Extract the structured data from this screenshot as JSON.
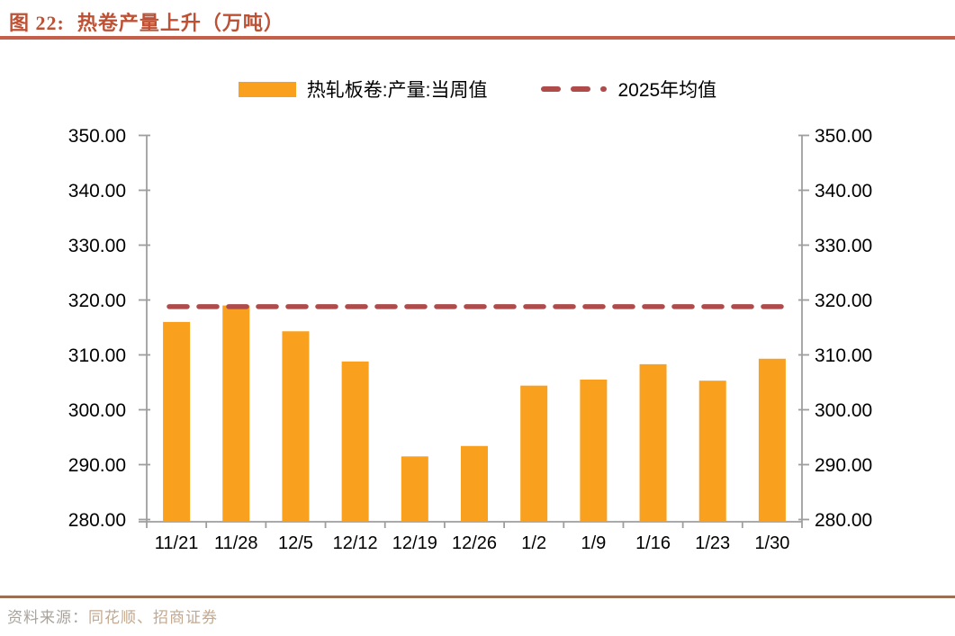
{
  "header": {
    "figure_label": "图 22:",
    "title": "热卷产量上升（万吨）"
  },
  "legend": {
    "bar_label": "热轧板卷:产量:当周值",
    "mean_label": "2025年均值"
  },
  "chart_data": {
    "type": "bar",
    "title": "热卷产量上升（万吨）",
    "categories": [
      "11/21",
      "11/28",
      "12/5",
      "12/12",
      "12/19",
      "12/26",
      "1/2",
      "1/9",
      "1/16",
      "1/23",
      "1/30"
    ],
    "series": [
      {
        "name": "热轧板卷:产量:当周值",
        "type": "bar",
        "values": [
          316.0,
          319.0,
          314.3,
          308.8,
          291.5,
          293.4,
          304.4,
          305.5,
          308.3,
          305.3,
          309.3
        ]
      },
      {
        "name": "2025年均值",
        "type": "dashed-horizontal-line",
        "value": 318.8
      }
    ],
    "ylim": [
      280,
      350
    ],
    "ytick_step": 10,
    "yticks": [
      "280.00",
      "290.00",
      "300.00",
      "310.00",
      "320.00",
      "330.00",
      "340.00",
      "350.00"
    ],
    "y_axis_sides": [
      "left",
      "right"
    ],
    "grid": false,
    "legend_position": "top-center",
    "xlabel": "",
    "ylabel": ""
  },
  "colors": {
    "bar": "#F9A11E",
    "mean_line": "#AF4B4B",
    "title": "#BE5134",
    "title_rule": "#C4604A",
    "axis": "#9E9E9E",
    "tick_label": "#000000",
    "footer_rule": "#9C6F52",
    "source_prefix_color": "#A8A39D",
    "source_names_color": "#C3A98F"
  },
  "footer": {
    "source_prefix": "资料来源：",
    "source_names": "同花顺、招商证券"
  }
}
